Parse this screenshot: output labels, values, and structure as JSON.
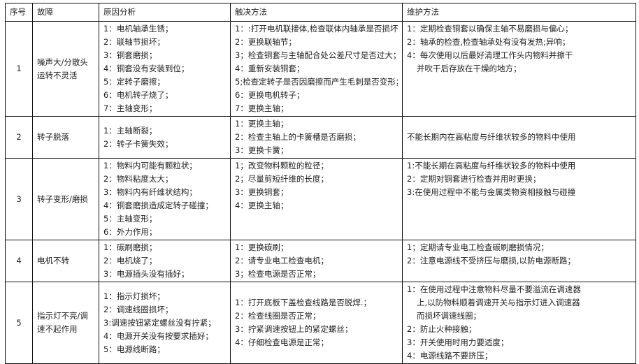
{
  "headers": [
    "序号",
    "故障",
    "原因分析",
    "触决方法",
    "维护方法"
  ],
  "rows": [
    {
      "num": "1",
      "fault": [
        "噪声大/分散头",
        "运转不灵活"
      ],
      "causes": [
        "1：电机轴承生锈；",
        "2：联轴节损坏；",
        "3：铜套磨损；",
        "4：铜套没有安装到位；",
        "5：定转子磨擦；",
        "6：电机转子烧了；",
        "7：主轴变形；"
      ],
      "solutions": [
        "1：:打开电机联接体,检查联体内轴承是否损坏；",
        "2：更换联轴节；",
        "3；检查铜套与主轴配合处公差尺寸是否过大；",
        "4：重新安装铜套；",
        "5;检查定转子是否因磨擦而产生毛刺是否变形；",
        "6：更换电机转子；",
        "7：更换主轴；"
      ],
      "maintenance": [
        "1：定期检查铜套以确保主轴不易磨损与偏心；",
        "2：轴承的检查,检查轴承处有没有发热;异响；",
        "4：每次使用以后最好清理工作头内物料并擦干",
        "并吹干后存放在干燥的地方；"
      ]
    },
    {
      "num": "2",
      "fault": [
        "转子脱落"
      ],
      "causes": [
        "1：主轴断裂；",
        "2：转子卡簧失效；"
      ],
      "solutions": [
        "1：更换主轴；",
        "2：检查主轴上的卡簧槽是否磨损；",
        "3：更换卡簧；"
      ],
      "maintenance": [
        "不能长期内在高粘度与纤维状较多的物料中使用"
      ]
    },
    {
      "num": "3",
      "fault": [
        "转子变形/磨损"
      ],
      "causes": [
        "1：物料内可能有颗粒状；",
        "2：物料粘度太大；",
        "3：物料内有纤维状结构；",
        "4：铜套磨损造成定转子碰撞；",
        "5：主轴变形；",
        "6：外力作用；"
      ],
      "solutions": [
        "1；改变物料颗粒的粒径；",
        "2；尽量剪短纤维的长度；",
        "3：更换铜套；",
        "4：更换主轴；"
      ],
      "maintenance": [
        "1:不能长期在高粘度与纤维状较多的物料中使用",
        "2：定期对铜套进行检查并用时更换；",
        "3:在使用过程中不能与金属类物资相接触与碰撞"
      ]
    },
    {
      "num": "4",
      "fault": [
        "电机不转"
      ],
      "causes": [
        "1：碳刷磨损；",
        "2：电机烧了；",
        "3：电源插头没有插好；"
      ],
      "solutions": [
        "1：更换碳刷；",
        "2：请专业电工检查电机；",
        "3；检查电源是否正常；"
      ],
      "maintenance": [
        "1；定期请专业电工检查碳刷磨损情况；",
        "2：注意电源线不受挤压与磨损,以防电源断路；"
      ]
    },
    {
      "num": "5",
      "fault": [
        "指示灯不亮/调",
        "速不起作用"
      ],
      "causes": [
        "1：指示灯损坏；",
        "2：调速线圈损坏；",
        "3:调速按钮紧定螺丝没有拧紧；",
        "4：电源开关没有按要求插好；",
        "5：电源线断路；"
      ],
      "solutions": [
        "1：打开底板下盖检查线路是否脱焊.；",
        "2：检查线圈是否正常；",
        "3：拧紧调速按钮上的紧定螺丝；",
        "4：仔细检查电源是正常；"
      ],
      "maintenance": [
        "1：在使用过程中注意物料尽量不要溢流在调速器",
        "上,以防物料顺着调速开关与指示灯进入调速器",
        "而损坏调速线圈；",
        "2：防止火种接触；",
        "3：开关使用时用力要适度；",
        "4：电源线路不要挤压；"
      ]
    }
  ]
}
